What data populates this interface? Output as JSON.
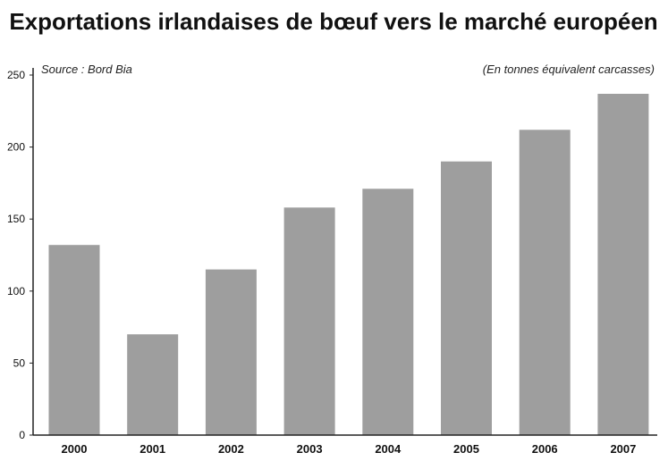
{
  "chart_data": {
    "type": "bar",
    "title": "Exportations irlandaises de bœuf vers le marché européen",
    "source": "Source : Bord Bia",
    "unit_note": "(En tonnes équivalent carcasses)",
    "xlabel": "",
    "ylabel": "",
    "categories": [
      "2000",
      "2001",
      "2002",
      "2003",
      "2004",
      "2005",
      "2006",
      "2007"
    ],
    "values": [
      132,
      70,
      115,
      158,
      171,
      190,
      212,
      237
    ],
    "ylim": [
      0,
      250
    ],
    "yticks": [
      0,
      50,
      100,
      150,
      200,
      250
    ],
    "grid": false,
    "legend": "none",
    "colors": {
      "bar": "#9e9e9e",
      "axis": "#222222"
    }
  }
}
